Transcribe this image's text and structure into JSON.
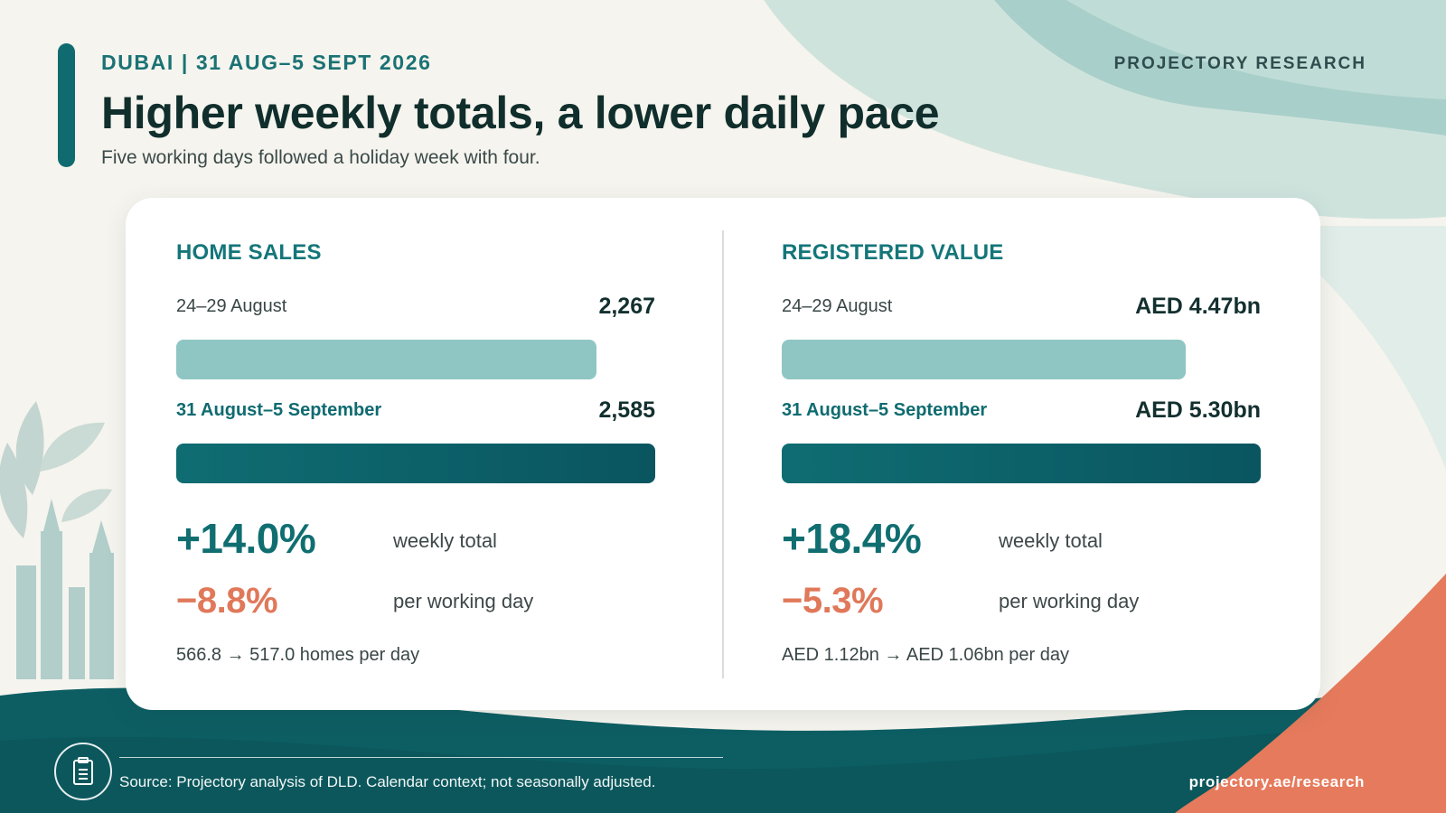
{
  "header": {
    "eyebrow": "DUBAI | 31 AUG–5 SEPT 2026",
    "brand": "PROJECTORY RESEARCH",
    "title": "Higher weekly totals, a lower daily pace",
    "subtitle": "Five working days followed a holiday week with four."
  },
  "chart_data": [
    {
      "type": "bar",
      "title": "HOME SALES",
      "categories": [
        "24–29 August",
        "31 August–5 September"
      ],
      "values": [
        2267,
        2585
      ],
      "value_labels": [
        "2,267",
        "2,585"
      ],
      "xlim": [
        0,
        2585
      ],
      "weekly_change": "+14.0%",
      "weekly_change_label": "weekly total",
      "daily_change": "−8.8%",
      "daily_change_label": "per working day",
      "per_day_note": "566.8 → 517.0 homes per day"
    },
    {
      "type": "bar",
      "title": "REGISTERED VALUE",
      "categories": [
        "24–29 August",
        "31 August–5 September"
      ],
      "values": [
        4.47,
        5.3
      ],
      "value_labels": [
        "AED 4.47bn",
        "AED 5.30bn"
      ],
      "xlim": [
        0,
        5.3
      ],
      "weekly_change": "+18.4%",
      "weekly_change_label": "weekly total",
      "daily_change": "−5.3%",
      "daily_change_label": "per working day",
      "per_day_note": "AED 1.12bn → AED 1.06bn per day"
    }
  ],
  "colors": {
    "accent": "#0f6b70",
    "bar_previous": "#8fc6c3",
    "bar_current": "#0a5a63",
    "positive": "#106e71",
    "negative": "#e0785a",
    "footer_band": "#0d5e63",
    "corner_accent": "#e67a5c"
  },
  "footer": {
    "icon": "document-icon",
    "source": "Source: Projectory analysis of DLD. Calendar context; not seasonally adjusted.",
    "url": "projectory.ae/research"
  }
}
